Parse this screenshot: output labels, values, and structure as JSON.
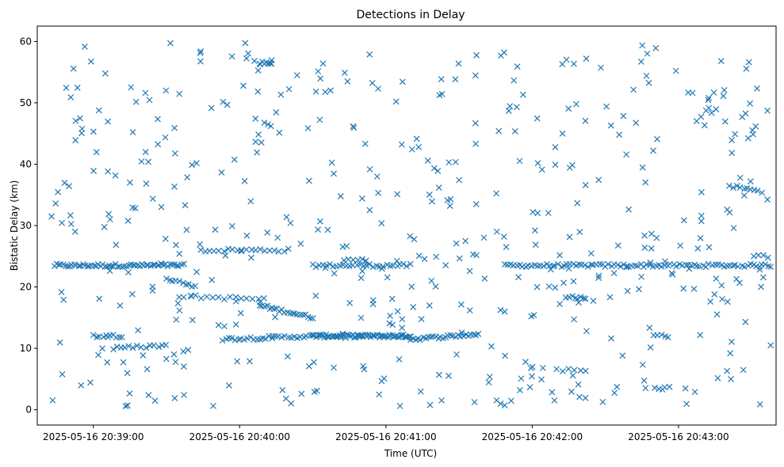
{
  "chart_data": {
    "type": "scatter",
    "title": "Detections in Delay",
    "xlabel": "Time (UTC)",
    "ylabel": "Bistatic Delay (km)",
    "x_unit": "seconds after 2025-05-16 20:38:00 UTC",
    "x_ticks": [
      {
        "t": 60,
        "label": "2025-05-16 20:39:00"
      },
      {
        "t": 120,
        "label": "2025-05-16 20:40:00"
      },
      {
        "t": 180,
        "label": "2025-05-16 20:41:00"
      },
      {
        "t": 240,
        "label": "2025-05-16 20:42:00"
      },
      {
        "t": 300,
        "label": "2025-05-16 20:43:00"
      }
    ],
    "y_ticks": [
      0,
      10,
      20,
      30,
      40,
      50,
      60
    ],
    "xlim": [
      37,
      340
    ],
    "ylim": [
      -2.5,
      62.5
    ],
    "marker": "x",
    "color": "#1f77b4",
    "grid": false,
    "legend": "none",
    "tracks": [
      {
        "t0": 44,
        "t1": 97,
        "v0": 23.5,
        "v1": 23.5,
        "n": 60
      },
      {
        "t0": 150,
        "t1": 190,
        "v0": 23.5,
        "v1": 23.5,
        "n": 30
      },
      {
        "t0": 230,
        "t1": 338,
        "v0": 23.5,
        "v1": 23.5,
        "n": 90
      },
      {
        "t0": 104,
        "t1": 140,
        "v0": 26.0,
        "v1": 26.0,
        "n": 20
      },
      {
        "t0": 95,
        "t1": 130,
        "v0": 18.5,
        "v1": 18.0,
        "n": 16
      },
      {
        "t0": 128,
        "t1": 150,
        "v0": 17.0,
        "v1": 15.0,
        "n": 22
      },
      {
        "t0": 113,
        "t1": 150,
        "v0": 11.5,
        "v1": 12.0,
        "n": 30
      },
      {
        "t0": 150,
        "t1": 190,
        "v0": 12.0,
        "v1": 12.0,
        "n": 70
      },
      {
        "t0": 190,
        "t1": 218,
        "v0": 11.5,
        "v1": 12.3,
        "n": 28
      },
      {
        "t0": 68,
        "t1": 90,
        "v0": 10.0,
        "v1": 10.5,
        "n": 14
      },
      {
        "t0": 60,
        "t1": 72,
        "v0": 12.0,
        "v1": 12.0,
        "n": 10
      },
      {
        "t0": 90,
        "t1": 102,
        "v0": 21.5,
        "v1": 20.0,
        "n": 10
      },
      {
        "t0": 128,
        "t1": 133,
        "v0": 56.5,
        "v1": 56.5,
        "n": 8
      },
      {
        "t0": 321,
        "t1": 334,
        "v0": 36.5,
        "v1": 35.5,
        "n": 10
      },
      {
        "t0": 254,
        "t1": 262,
        "v0": 18.5,
        "v1": 18.0,
        "n": 8
      },
      {
        "t0": 250,
        "t1": 262,
        "v0": 6.5,
        "v1": 6.5,
        "n": 6
      },
      {
        "t0": 290,
        "t1": 296,
        "v0": 12.0,
        "v1": 12.0,
        "n": 5
      },
      {
        "t0": 163,
        "t1": 172,
        "v0": 24.5,
        "v1": 24.5,
        "n": 6
      },
      {
        "t0": 331,
        "t1": 337,
        "v0": 25.0,
        "v1": 25.0,
        "n": 4
      },
      {
        "t0": 290,
        "t1": 296,
        "v0": 3.5,
        "v1": 3.5,
        "n": 4
      }
    ],
    "scatter": {
      "t0": 42,
      "t1": 338,
      "vmin": 0.5,
      "vmax": 60,
      "n": 500
    }
  }
}
